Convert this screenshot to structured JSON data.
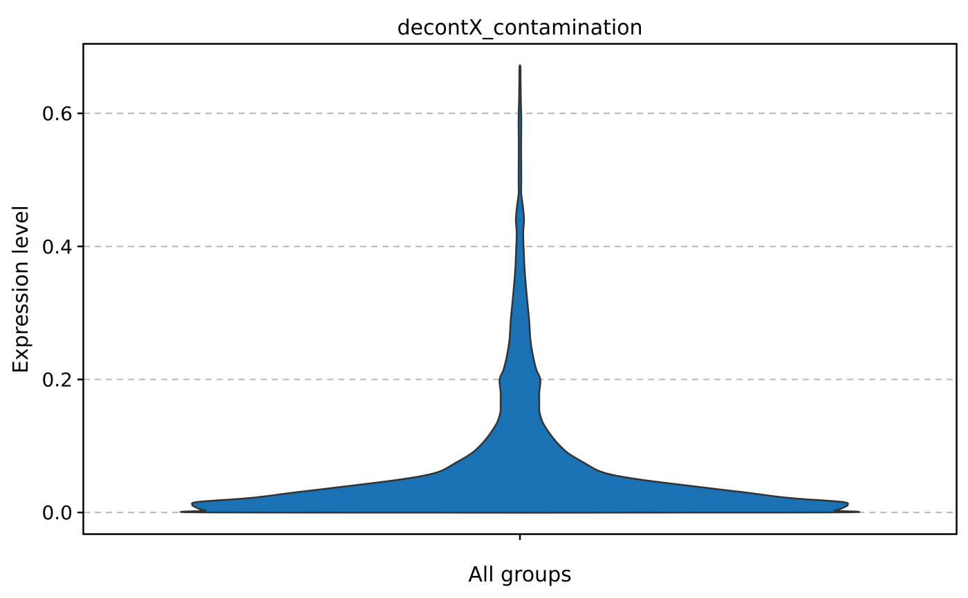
{
  "chart_data": {
    "type": "violin",
    "title": "decontX_contamination",
    "xlabel": "All groups",
    "ylabel": "Expression level",
    "categories": [
      ""
    ],
    "ylim": [
      -0.032,
      0.704
    ],
    "yticks": [
      0.0,
      0.2,
      0.4,
      0.6
    ],
    "ytick_labels": [
      "0.0",
      "0.2",
      "0.4",
      "0.6"
    ],
    "grid": "horizontal dashed",
    "fill_color": "#1a72b4",
    "edge_color": "#333333",
    "series": [
      {
        "values_min": 0.0,
        "values_max": 0.67,
        "density_profile": [
          {
            "y": 0.0,
            "w": 0.88
          },
          {
            "y": 0.003,
            "w": 0.96
          },
          {
            "y": 0.008,
            "w": 0.99
          },
          {
            "y": 0.012,
            "w": 1.0
          },
          {
            "y": 0.016,
            "w": 0.98
          },
          {
            "y": 0.022,
            "w": 0.82
          },
          {
            "y": 0.03,
            "w": 0.69
          },
          {
            "y": 0.04,
            "w": 0.52
          },
          {
            "y": 0.05,
            "w": 0.36
          },
          {
            "y": 0.06,
            "w": 0.255
          },
          {
            "y": 0.075,
            "w": 0.195
          },
          {
            "y": 0.09,
            "w": 0.145
          },
          {
            "y": 0.105,
            "w": 0.113
          },
          {
            "y": 0.12,
            "w": 0.089
          },
          {
            "y": 0.135,
            "w": 0.07
          },
          {
            "y": 0.15,
            "w": 0.06
          },
          {
            "y": 0.16,
            "w": 0.059
          },
          {
            "y": 0.18,
            "w": 0.059
          },
          {
            "y": 0.2,
            "w": 0.062
          },
          {
            "y": 0.215,
            "w": 0.05
          },
          {
            "y": 0.235,
            "w": 0.04
          },
          {
            "y": 0.26,
            "w": 0.032
          },
          {
            "y": 0.29,
            "w": 0.028
          },
          {
            "y": 0.32,
            "w": 0.022
          },
          {
            "y": 0.36,
            "w": 0.015
          },
          {
            "y": 0.39,
            "w": 0.012
          },
          {
            "y": 0.42,
            "w": 0.01
          },
          {
            "y": 0.44,
            "w": 0.0125
          },
          {
            "y": 0.46,
            "w": 0.009
          },
          {
            "y": 0.48,
            "w": 0.004
          },
          {
            "y": 0.5,
            "w": 0.0042
          },
          {
            "y": 0.55,
            "w": 0.0037
          },
          {
            "y": 0.59,
            "w": 0.0042
          },
          {
            "y": 0.62,
            "w": 0.0028
          },
          {
            "y": 0.65,
            "w": 0.002
          },
          {
            "y": 0.67,
            "w": 0.0015
          }
        ]
      }
    ]
  }
}
